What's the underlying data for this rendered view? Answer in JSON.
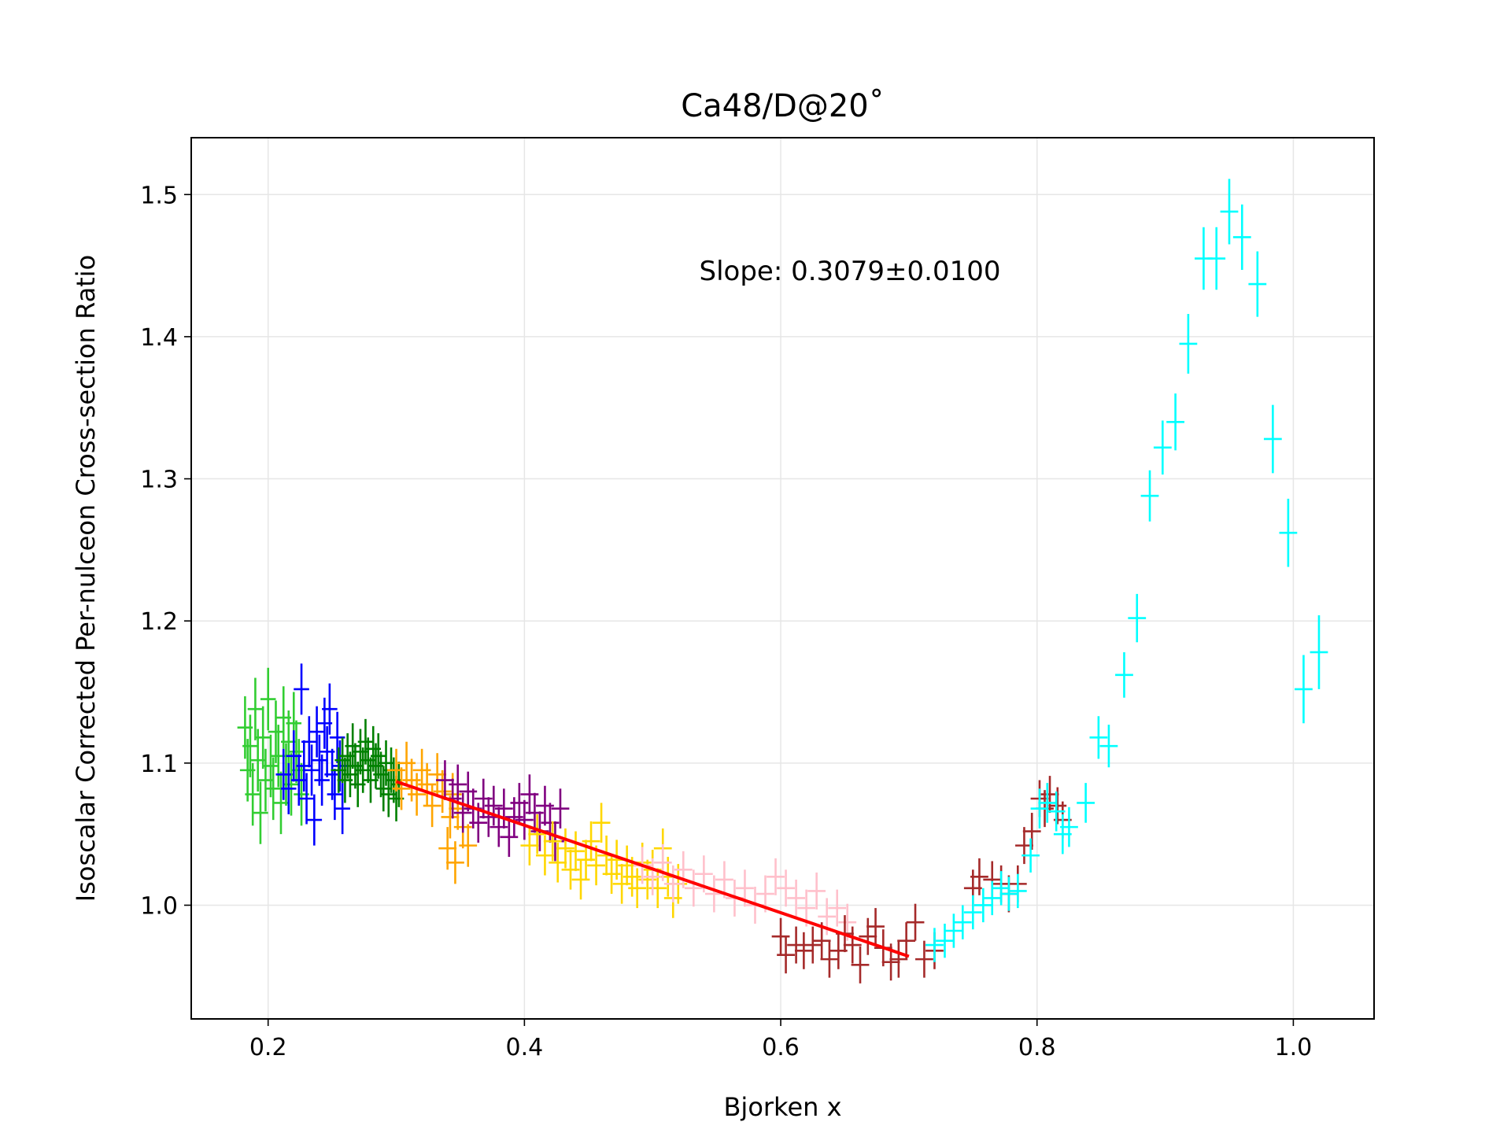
{
  "chart_data": {
    "type": "scatter",
    "title": "Ca48/D@20˚",
    "xlabel": "Bjorken x",
    "ylabel": "Isoscalar Corrected Per-nulceon Cross-section Ratio",
    "xlim": [
      0.14,
      1.063
    ],
    "ylim": [
      0.92,
      1.54
    ],
    "xticks": [
      "0.2",
      "0.4",
      "0.6",
      "0.8",
      "1.0"
    ],
    "yticks": [
      "1.0",
      "1.1",
      "1.2",
      "1.3",
      "1.4",
      "1.5"
    ],
    "grid": true,
    "annotation": "Slope: 0.3079±0.0100",
    "fit_line": {
      "color": "#ff0000",
      "x": [
        0.3,
        0.7
      ],
      "y": [
        1.087,
        0.964
      ]
    },
    "series": [
      {
        "color": "#32cd32",
        "xerr": 0.006,
        "points": [
          [
            0.182,
            1.125,
            0.022
          ],
          [
            0.184,
            1.095,
            0.022
          ],
          [
            0.186,
            1.112,
            0.022
          ],
          [
            0.188,
            1.078,
            0.022
          ],
          [
            0.19,
            1.138,
            0.022
          ],
          [
            0.192,
            1.102,
            0.022
          ],
          [
            0.194,
            1.065,
            0.022
          ],
          [
            0.196,
            1.118,
            0.022
          ],
          [
            0.198,
            1.088,
            0.022
          ],
          [
            0.2,
            1.145,
            0.022
          ],
          [
            0.202,
            1.098,
            0.022
          ],
          [
            0.204,
            1.082,
            0.022
          ],
          [
            0.206,
            1.122,
            0.022
          ],
          [
            0.208,
            1.105,
            0.022
          ],
          [
            0.21,
            1.072,
            0.022
          ],
          [
            0.212,
            1.132,
            0.022
          ],
          [
            0.214,
            1.092,
            0.022
          ],
          [
            0.216,
            1.115,
            0.022
          ],
          [
            0.218,
            1.085,
            0.022
          ],
          [
            0.22,
            1.128,
            0.022
          ],
          [
            0.222,
            1.108,
            0.022
          ],
          [
            0.224,
            1.095,
            0.022
          ],
          [
            0.226,
            1.078,
            0.022
          ]
        ]
      },
      {
        "color": "#0000ff",
        "xerr": 0.006,
        "points": [
          [
            0.212,
            1.092,
            0.018
          ],
          [
            0.216,
            1.082,
            0.018
          ],
          [
            0.22,
            1.105,
            0.018
          ],
          [
            0.224,
            1.088,
            0.018
          ],
          [
            0.226,
            1.152,
            0.018
          ],
          [
            0.228,
            1.098,
            0.018
          ],
          [
            0.23,
            1.075,
            0.018
          ],
          [
            0.232,
            1.115,
            0.018
          ],
          [
            0.234,
            1.095,
            0.018
          ],
          [
            0.236,
            1.06,
            0.018
          ],
          [
            0.238,
            1.122,
            0.018
          ],
          [
            0.24,
            1.102,
            0.018
          ],
          [
            0.242,
            1.088,
            0.018
          ],
          [
            0.244,
            1.128,
            0.018
          ],
          [
            0.246,
            1.108,
            0.018
          ],
          [
            0.248,
            1.138,
            0.018
          ],
          [
            0.25,
            1.092,
            0.018
          ],
          [
            0.252,
            1.078,
            0.018
          ],
          [
            0.254,
            1.118,
            0.018
          ],
          [
            0.256,
            1.098,
            0.018
          ],
          [
            0.258,
            1.068,
            0.018
          ]
        ]
      },
      {
        "color": "#008000",
        "xerr": 0.006,
        "points": [
          [
            0.255,
            1.095,
            0.016
          ],
          [
            0.258,
            1.102,
            0.016
          ],
          [
            0.26,
            1.088,
            0.016
          ],
          [
            0.262,
            1.105,
            0.016
          ],
          [
            0.264,
            1.092,
            0.016
          ],
          [
            0.266,
            1.112,
            0.016
          ],
          [
            0.268,
            1.098,
            0.016
          ],
          [
            0.27,
            1.085,
            0.016
          ],
          [
            0.272,
            1.108,
            0.016
          ],
          [
            0.274,
            1.095,
            0.016
          ],
          [
            0.276,
            1.115,
            0.016
          ],
          [
            0.278,
            1.102,
            0.016
          ],
          [
            0.28,
            1.088,
            0.016
          ],
          [
            0.282,
            1.11,
            0.016
          ],
          [
            0.284,
            1.098,
            0.016
          ],
          [
            0.286,
            1.105,
            0.016
          ],
          [
            0.288,
            1.092,
            0.016
          ],
          [
            0.29,
            1.082,
            0.016
          ],
          [
            0.292,
            1.1,
            0.016
          ],
          [
            0.294,
            1.078,
            0.016
          ],
          [
            0.296,
            1.095,
            0.016
          ],
          [
            0.298,
            1.088,
            0.016
          ],
          [
            0.3,
            1.075,
            0.016
          ],
          [
            0.302,
            1.085,
            0.016
          ]
        ]
      },
      {
        "color": "#ffa500",
        "xerr": 0.007,
        "points": [
          [
            0.3,
            1.095,
            0.015
          ],
          [
            0.304,
            1.082,
            0.015
          ],
          [
            0.308,
            1.1,
            0.015
          ],
          [
            0.312,
            1.088,
            0.015
          ],
          [
            0.316,
            1.078,
            0.015
          ],
          [
            0.32,
            1.095,
            0.015
          ],
          [
            0.324,
            1.085,
            0.015
          ],
          [
            0.328,
            1.07,
            0.015
          ],
          [
            0.332,
            1.092,
            0.015
          ],
          [
            0.336,
            1.08,
            0.015
          ],
          [
            0.34,
            1.04,
            0.015
          ],
          [
            0.342,
            1.062,
            0.015
          ],
          [
            0.344,
            1.078,
            0.015
          ],
          [
            0.346,
            1.03,
            0.015
          ],
          [
            0.348,
            1.068,
            0.015
          ],
          [
            0.352,
            1.055,
            0.015
          ],
          [
            0.356,
            1.042,
            0.015
          ]
        ]
      },
      {
        "color": "#800080",
        "xerr": 0.007,
        "points": [
          [
            0.338,
            1.088,
            0.014
          ],
          [
            0.344,
            1.075,
            0.014
          ],
          [
            0.348,
            1.085,
            0.014
          ],
          [
            0.352,
            1.065,
            0.014
          ],
          [
            0.356,
            1.08,
            0.014
          ],
          [
            0.36,
            1.068,
            0.014
          ],
          [
            0.364,
            1.058,
            0.014
          ],
          [
            0.368,
            1.075,
            0.014
          ],
          [
            0.372,
            1.062,
            0.014
          ],
          [
            0.376,
            1.07,
            0.014
          ],
          [
            0.38,
            1.055,
            0.014
          ],
          [
            0.384,
            1.068,
            0.014
          ],
          [
            0.388,
            1.048,
            0.014
          ],
          [
            0.392,
            1.062,
            0.014
          ],
          [
            0.396,
            1.072,
            0.014
          ],
          [
            0.4,
            1.06,
            0.014
          ],
          [
            0.404,
            1.078,
            0.014
          ],
          [
            0.408,
            1.065,
            0.014
          ],
          [
            0.412,
            1.052,
            0.014
          ],
          [
            0.416,
            1.07,
            0.014
          ],
          [
            0.42,
            1.058,
            0.014
          ],
          [
            0.424,
            1.045,
            0.014
          ],
          [
            0.428,
            1.068,
            0.014
          ]
        ]
      },
      {
        "color": "#ffd700",
        "xerr": 0.007,
        "points": [
          [
            0.404,
            1.042,
            0.014
          ],
          [
            0.41,
            1.05,
            0.014
          ],
          [
            0.416,
            1.035,
            0.014
          ],
          [
            0.422,
            1.045,
            0.014
          ],
          [
            0.426,
            1.03,
            0.014
          ],
          [
            0.432,
            1.04,
            0.014
          ],
          [
            0.436,
            1.025,
            0.014
          ],
          [
            0.44,
            1.038,
            0.014
          ],
          [
            0.444,
            1.018,
            0.014
          ],
          [
            0.448,
            1.032,
            0.014
          ],
          [
            0.452,
            1.045,
            0.014
          ],
          [
            0.456,
            1.028,
            0.014
          ],
          [
            0.46,
            1.058,
            0.014
          ],
          [
            0.464,
            1.035,
            0.014
          ],
          [
            0.468,
            1.022,
            0.014
          ],
          [
            0.472,
            1.032,
            0.014
          ],
          [
            0.476,
            1.015,
            0.014
          ],
          [
            0.48,
            1.028,
            0.014
          ],
          [
            0.484,
            1.02,
            0.014
          ],
          [
            0.488,
            1.012,
            0.014
          ],
          [
            0.492,
            1.03,
            0.014
          ],
          [
            0.496,
            1.018,
            0.014
          ],
          [
            0.5,
            1.025,
            0.014
          ],
          [
            0.504,
            1.012,
            0.014
          ],
          [
            0.508,
            1.04,
            0.014
          ],
          [
            0.512,
            1.02,
            0.014
          ],
          [
            0.516,
            1.005,
            0.014
          ],
          [
            0.52,
            1.015,
            0.014
          ]
        ]
      },
      {
        "color": "#ffc0cb",
        "xerr": 0.007,
        "points": [
          [
            0.492,
            1.028,
            0.013
          ],
          [
            0.5,
            1.02,
            0.013
          ],
          [
            0.508,
            1.03,
            0.013
          ],
          [
            0.516,
            1.015,
            0.013
          ],
          [
            0.524,
            1.025,
            0.013
          ],
          [
            0.532,
            1.012,
            0.013
          ],
          [
            0.54,
            1.022,
            0.013
          ],
          [
            0.548,
            1.008,
            0.013
          ],
          [
            0.556,
            1.018,
            0.013
          ],
          [
            0.564,
            1.005,
            0.013
          ],
          [
            0.572,
            1.012,
            0.013
          ],
          [
            0.58,
            1.0,
            0.013
          ],
          [
            0.588,
            1.008,
            0.013
          ],
          [
            0.596,
            1.02,
            0.013
          ],
          [
            0.604,
            1.012,
            0.013
          ],
          [
            0.612,
            1.005,
            0.013
          ],
          [
            0.62,
            0.998,
            0.013
          ],
          [
            0.628,
            1.01,
            0.013
          ],
          [
            0.636,
            0.992,
            0.013
          ],
          [
            0.644,
            0.998,
            0.013
          ],
          [
            0.652,
            0.988,
            0.013
          ]
        ]
      },
      {
        "color": "#a52a2a",
        "xerr": 0.007,
        "points": [
          [
            0.6,
            0.978,
            0.013
          ],
          [
            0.604,
            0.965,
            0.013
          ],
          [
            0.612,
            0.972,
            0.013
          ],
          [
            0.618,
            0.968,
            0.013
          ],
          [
            0.625,
            0.972,
            0.013
          ],
          [
            0.632,
            0.975,
            0.013
          ],
          [
            0.638,
            0.962,
            0.013
          ],
          [
            0.645,
            0.968,
            0.013
          ],
          [
            0.65,
            0.98,
            0.013
          ],
          [
            0.656,
            0.972,
            0.013
          ],
          [
            0.662,
            0.958,
            0.013
          ],
          [
            0.668,
            0.978,
            0.013
          ],
          [
            0.674,
            0.985,
            0.013
          ],
          [
            0.68,
            0.97,
            0.013
          ],
          [
            0.686,
            0.96,
            0.013
          ],
          [
            0.692,
            0.962,
            0.013
          ],
          [
            0.698,
            0.975,
            0.013
          ],
          [
            0.705,
            0.988,
            0.013
          ],
          [
            0.712,
            0.962,
            0.013
          ],
          [
            0.72,
            0.968,
            0.013
          ],
          [
            0.75,
            1.012,
            0.013
          ],
          [
            0.755,
            1.02,
            0.013
          ],
          [
            0.765,
            1.018,
            0.013
          ],
          [
            0.772,
            1.015,
            0.013
          ],
          [
            0.778,
            1.008,
            0.013
          ],
          [
            0.785,
            1.015,
            0.013
          ],
          [
            0.79,
            1.042,
            0.013
          ],
          [
            0.796,
            1.052,
            0.013
          ],
          [
            0.802,
            1.075,
            0.013
          ],
          [
            0.806,
            1.068,
            0.013
          ],
          [
            0.81,
            1.078,
            0.013
          ],
          [
            0.816,
            1.07,
            0.013
          ],
          [
            0.82,
            1.06,
            0.013
          ]
        ]
      },
      {
        "color": "#00ffff",
        "xerr": 0.007,
        "points": [
          [
            0.72,
            0.972,
            0.012
          ],
          [
            0.728,
            0.975,
            0.012
          ],
          [
            0.735,
            0.982,
            0.012
          ],
          [
            0.742,
            0.988,
            0.012
          ],
          [
            0.75,
            0.995,
            0.012
          ],
          [
            0.758,
            1.0,
            0.012
          ],
          [
            0.765,
            1.005,
            0.012
          ],
          [
            0.772,
            1.012,
            0.012
          ],
          [
            0.778,
            1.008,
            0.012
          ],
          [
            0.785,
            1.01,
            0.012
          ],
          [
            0.795,
            1.035,
            0.012
          ],
          [
            0.802,
            1.068,
            0.014
          ],
          [
            0.808,
            1.072,
            0.014
          ],
          [
            0.815,
            1.066,
            0.014
          ],
          [
            0.82,
            1.05,
            0.014
          ],
          [
            0.825,
            1.055,
            0.014
          ],
          [
            0.838,
            1.072,
            0.014
          ],
          [
            0.848,
            1.118,
            0.015
          ],
          [
            0.856,
            1.112,
            0.015
          ],
          [
            0.868,
            1.162,
            0.016
          ],
          [
            0.878,
            1.202,
            0.017
          ],
          [
            0.888,
            1.288,
            0.018
          ],
          [
            0.898,
            1.322,
            0.019
          ],
          [
            0.908,
            1.34,
            0.02
          ],
          [
            0.918,
            1.395,
            0.021
          ],
          [
            0.93,
            1.455,
            0.022
          ],
          [
            0.94,
            1.455,
            0.022
          ],
          [
            0.95,
            1.488,
            0.023
          ],
          [
            0.96,
            1.47,
            0.023
          ],
          [
            0.972,
            1.437,
            0.023
          ],
          [
            0.984,
            1.328,
            0.024
          ],
          [
            0.996,
            1.262,
            0.024
          ],
          [
            1.008,
            1.152,
            0.024
          ],
          [
            1.02,
            1.178,
            0.026
          ]
        ]
      }
    ]
  }
}
